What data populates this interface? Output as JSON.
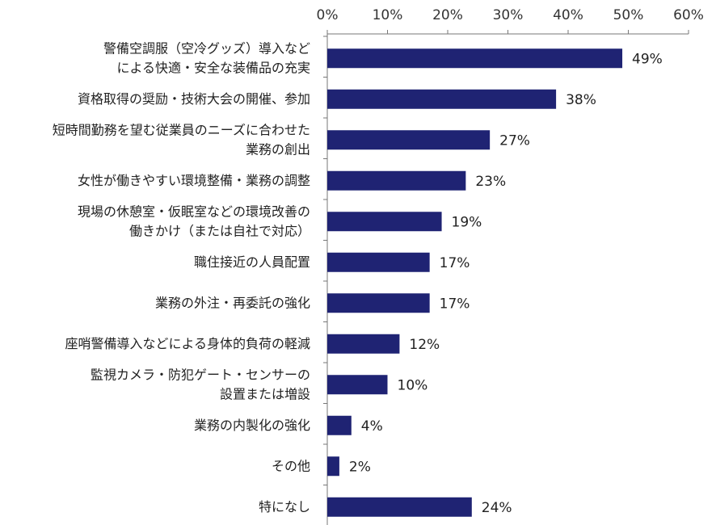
{
  "chart_data": {
    "type": "bar",
    "orientation": "horizontal",
    "title": "",
    "xlabel": "",
    "ylabel": "",
    "xlim": [
      0,
      60
    ],
    "tick_values": [
      0,
      10,
      20,
      30,
      40,
      50,
      60
    ],
    "tick_labels": [
      "0%",
      "10%",
      "20%",
      "30%",
      "40%",
      "50%",
      "60%"
    ],
    "axis_position": "top",
    "grid": false,
    "bar_color": "#1F2373",
    "categories": [
      [
        "警備空調服（空冷グッズ）導入など",
        "による快適・安全な装備品の充実"
      ],
      [
        "資格取得の奨励・技術大会の開催、参加"
      ],
      [
        "短時間勤務を望む従業員のニーズに合わせた",
        "業務の創出"
      ],
      [
        "女性が働きやすい環境整備・業務の調整"
      ],
      [
        "現場の休憩室・仮眠室などの環境改善の",
        "働きかけ（または自社で対応）"
      ],
      [
        "職住接近の人員配置"
      ],
      [
        "業務の外注・再委託の強化"
      ],
      [
        "座哨警備導入などによる身体的負荷の軽減"
      ],
      [
        "監視カメラ・防犯ゲート・センサーの",
        "設置または増設"
      ],
      [
        "業務の内製化の強化"
      ],
      [
        "その他"
      ],
      [
        "特になし"
      ]
    ],
    "values": [
      49,
      38,
      27,
      23,
      19,
      17,
      17,
      12,
      10,
      4,
      2,
      24
    ],
    "value_labels": [
      "49%",
      "38%",
      "27%",
      "23%",
      "19%",
      "17%",
      "17%",
      "12%",
      "10%",
      "4%",
      "2%",
      "24%"
    ]
  }
}
